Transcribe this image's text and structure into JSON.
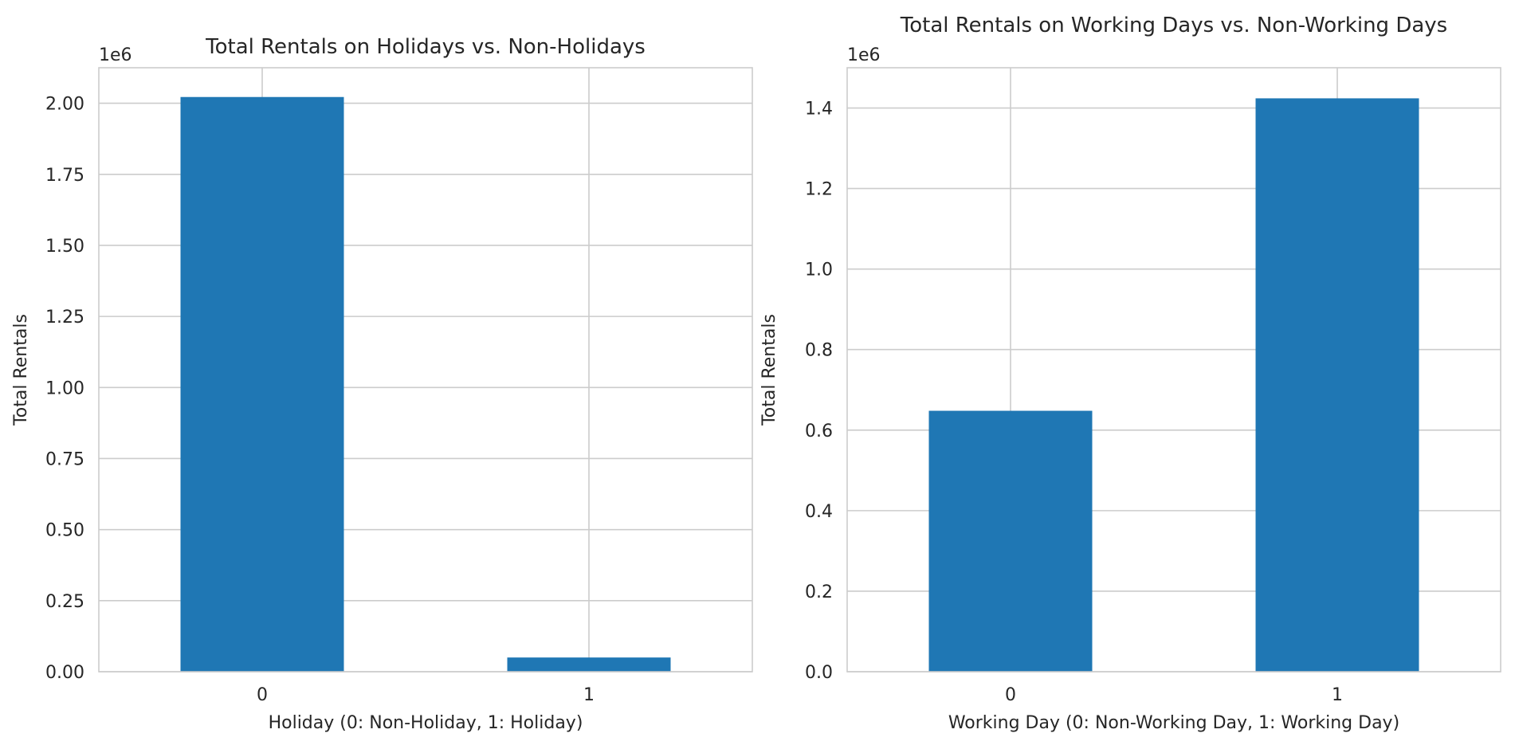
{
  "chart_data": [
    {
      "type": "bar",
      "title": "Total Rentals on Holidays vs. Non-Holidays",
      "xlabel": "Holiday (0: Non-Holiday, 1: Holiday)",
      "ylabel": "Total Rentals",
      "offset_label": "1e6",
      "categories": [
        "0",
        "1"
      ],
      "values": [
        2022000,
        50000
      ],
      "ylim": [
        0,
        2125000
      ],
      "yticks": [
        0,
        250000,
        500000,
        750000,
        1000000,
        1250000,
        1500000,
        1750000,
        2000000
      ],
      "ytick_labels": [
        "0.00",
        "0.25",
        "0.50",
        "0.75",
        "1.00",
        "1.25",
        "1.50",
        "1.75",
        "2.00"
      ],
      "grid": true,
      "color": "#1f77b4"
    },
    {
      "type": "bar",
      "title": "Total Rentals on Working Days vs. Non-Working Days",
      "xlabel": "Working Day (0: Non-Working Day, 1: Working Day)",
      "ylabel": "Total Rentals",
      "offset_label": "1e6",
      "categories": [
        "0",
        "1"
      ],
      "values": [
        648000,
        1424000
      ],
      "ylim": [
        0,
        1500000
      ],
      "yticks": [
        0,
        200000,
        400000,
        600000,
        800000,
        1000000,
        1200000,
        1400000
      ],
      "ytick_labels": [
        "0.0",
        "0.2",
        "0.4",
        "0.6",
        "0.8",
        "1.0",
        "1.2",
        "1.4"
      ],
      "grid": true,
      "color": "#1f77b4"
    }
  ]
}
